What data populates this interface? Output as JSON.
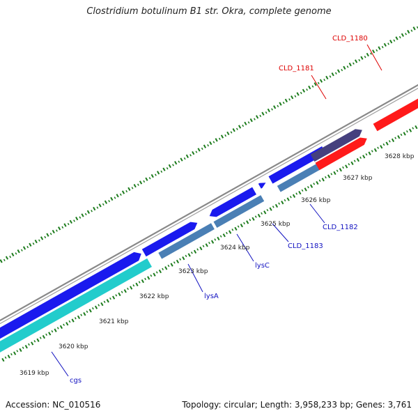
{
  "title": "Clostridium botulinum B1 str. Okra, complete genome",
  "accession": "Accession: NC_010516",
  "topology": "Topology: circular; Length: 3,958,233 bp; Genes: 3,761",
  "colors": {
    "backbone": "#888888",
    "tick": "#1a7a1a",
    "gene_forward": "#1a1aee",
    "gene_reverse": "#4a7fb5",
    "gene_rna": "#22cccc",
    "gene_highlight": "#ff1a1a",
    "gene_purple": "#45407e",
    "label_blue": "#1010c0",
    "label_red": "#dd0000",
    "leader_blue": "#1010c0",
    "leader_red": "#dd0000"
  },
  "scale_labels": [
    "3619 kbp",
    "3620 kbp",
    "3621 kbp",
    "3622 kbp",
    "3623 kbp",
    "3624 kbp",
    "3625 kbp",
    "3626 kbp",
    "3627 kbp",
    "3628 kbp"
  ],
  "gene_labels": [
    {
      "text": "cgs",
      "color": "blue"
    },
    {
      "text": "lysA",
      "color": "blue"
    },
    {
      "text": "lysC",
      "color": "blue"
    },
    {
      "text": "CLD_1183",
      "color": "blue"
    },
    {
      "text": "CLD_1182",
      "color": "blue"
    },
    {
      "text": "CLD_1181",
      "color": "red"
    },
    {
      "text": "CLD_1180",
      "color": "red"
    }
  ]
}
